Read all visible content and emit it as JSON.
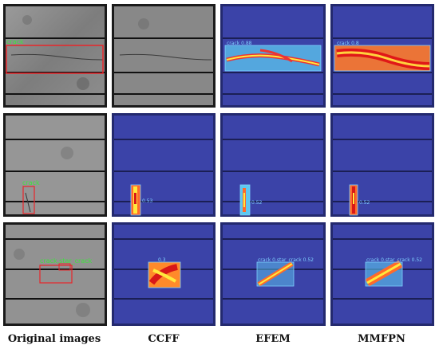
{
  "columns": [
    {
      "label": "Original images"
    },
    {
      "label": "CCFF"
    },
    {
      "label": "EFEM"
    },
    {
      "label": "MMFPN"
    }
  ],
  "rows": [
    {
      "original": {
        "label": "crack"
      },
      "ccff": {
        "label": ""
      },
      "efem": {
        "label": "crack 0.88"
      },
      "mmfpn": {
        "label": "crack 0.8"
      }
    },
    {
      "original": {
        "label": "crack"
      },
      "ccff": {
        "label": "0.53"
      },
      "efem": {
        "label": "0.52"
      },
      "mmfpn": {
        "label": "0.52"
      }
    },
    {
      "original": {
        "label": "crack,star_crack"
      },
      "ccff": {
        "label": "0.3"
      },
      "efem": {
        "label": "crack 0.star_crack 0.52"
      },
      "mmfpn": {
        "label": "crack 0.star_crack 0.52"
      }
    }
  ],
  "colors": {
    "gt_box": "#e8262a",
    "gt_text": "#3ee33e",
    "pred_text": "#7fd0ff",
    "heat_bg": "#3b43a8"
  }
}
